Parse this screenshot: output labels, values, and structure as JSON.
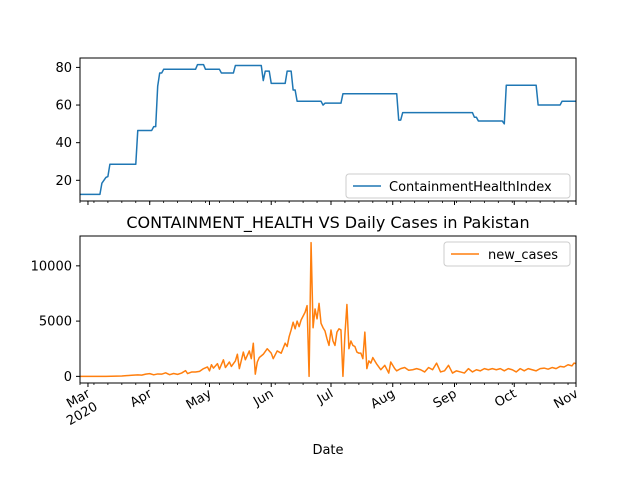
{
  "chart_data": [
    {
      "type": "line",
      "title": "",
      "xlabel": "",
      "ylabel": "",
      "xlim": [
        "2020-02-26",
        "2020-11-01"
      ],
      "ylim": [
        9,
        85
      ],
      "y_ticks": [
        "20",
        "40",
        "60",
        "80"
      ],
      "grid": false,
      "legend_position": "lower-right",
      "series": [
        {
          "name": "ContainmentHealthIndex",
          "color": "#1f77b4",
          "points": [
            [
              "2020-02-26",
              12.5
            ],
            [
              "2020-03-07",
              12.5
            ],
            [
              "2020-03-08",
              18.5
            ],
            [
              "2020-03-10",
              21.5
            ],
            [
              "2020-03-11",
              22
            ],
            [
              "2020-03-12",
              28.5
            ],
            [
              "2020-03-25",
              28.5
            ],
            [
              "2020-03-26",
              46.5
            ],
            [
              "2020-04-02",
              46.5
            ],
            [
              "2020-04-03",
              48.5
            ],
            [
              "2020-04-04",
              48.5
            ],
            [
              "2020-04-05",
              70
            ],
            [
              "2020-04-06",
              77
            ],
            [
              "2020-04-07",
              77
            ],
            [
              "2020-04-08",
              79
            ],
            [
              "2020-04-24",
              79
            ],
            [
              "2020-04-25",
              81.5
            ],
            [
              "2020-04-28",
              81.5
            ],
            [
              "2020-04-29",
              79
            ],
            [
              "2020-05-06",
              79
            ],
            [
              "2020-05-07",
              77
            ],
            [
              "2020-05-13",
              77
            ],
            [
              "2020-05-14",
              81
            ],
            [
              "2020-05-27",
              81
            ],
            [
              "2020-05-28",
              73
            ],
            [
              "2020-05-29",
              78
            ],
            [
              "2020-05-31",
              78
            ],
            [
              "2020-06-01",
              71.5
            ],
            [
              "2020-06-08",
              71.5
            ],
            [
              "2020-06-09",
              78
            ],
            [
              "2020-06-11",
              78
            ],
            [
              "2020-06-12",
              68
            ],
            [
              "2020-06-13",
              68
            ],
            [
              "2020-06-14",
              62
            ],
            [
              "2020-06-26",
              62
            ],
            [
              "2020-06-27",
              60
            ],
            [
              "2020-06-28",
              61
            ],
            [
              "2020-07-06",
              61
            ],
            [
              "2020-07-07",
              66
            ],
            [
              "2020-08-03",
              66
            ],
            [
              "2020-08-04",
              52
            ],
            [
              "2020-08-05",
              52
            ],
            [
              "2020-08-06",
              56
            ],
            [
              "2020-09-10",
              56
            ],
            [
              "2020-09-11",
              53.5
            ],
            [
              "2020-09-12",
              53.5
            ],
            [
              "2020-09-13",
              51.5
            ],
            [
              "2020-09-25",
              51.5
            ],
            [
              "2020-09-26",
              50
            ],
            [
              "2020-09-27",
              70.5
            ],
            [
              "2020-10-12",
              70.5
            ],
            [
              "2020-10-13",
              60
            ],
            [
              "2020-10-24",
              60
            ],
            [
              "2020-10-25",
              62
            ],
            [
              "2020-11-01",
              62
            ]
          ]
        }
      ]
    },
    {
      "type": "line",
      "title": "CONTAINMENT_HEALTH VS Daily Cases in Pakistan",
      "xlabel": "Date",
      "ylabel": "",
      "xlim": [
        "2020-02-26",
        "2020-11-01"
      ],
      "ylim": [
        -600,
        12700
      ],
      "y_ticks": [
        "0",
        "5000",
        "10000"
      ],
      "x_ticks": [
        "Mar\n2020",
        "Apr",
        "May",
        "Jun",
        "Jul",
        "Aug",
        "Sep",
        "Oct",
        "Nov"
      ],
      "grid": false,
      "legend_position": "upper-right",
      "series": [
        {
          "name": "new_cases",
          "color": "#ff7f0e",
          "points": [
            [
              "2020-02-26",
              0
            ],
            [
              "2020-03-10",
              0
            ],
            [
              "2020-03-18",
              30
            ],
            [
              "2020-03-23",
              100
            ],
            [
              "2020-03-26",
              140
            ],
            [
              "2020-03-28",
              110
            ],
            [
              "2020-03-30",
              200
            ],
            [
              "2020-04-01",
              250
            ],
            [
              "2020-04-03",
              140
            ],
            [
              "2020-04-05",
              220
            ],
            [
              "2020-04-07",
              200
            ],
            [
              "2020-04-09",
              320
            ],
            [
              "2020-04-11",
              150
            ],
            [
              "2020-04-13",
              260
            ],
            [
              "2020-04-15",
              180
            ],
            [
              "2020-04-17",
              300
            ],
            [
              "2020-04-19",
              520
            ],
            [
              "2020-04-20",
              250
            ],
            [
              "2020-04-22",
              390
            ],
            [
              "2020-04-24",
              400
            ],
            [
              "2020-04-26",
              450
            ],
            [
              "2020-04-28",
              700
            ],
            [
              "2020-04-30",
              850
            ],
            [
              "2020-05-01",
              500
            ],
            [
              "2020-05-02",
              1050
            ],
            [
              "2020-05-03",
              750
            ],
            [
              "2020-05-05",
              1150
            ],
            [
              "2020-05-06",
              650
            ],
            [
              "2020-05-08",
              1500
            ],
            [
              "2020-05-09",
              800
            ],
            [
              "2020-05-11",
              1300
            ],
            [
              "2020-05-12",
              900
            ],
            [
              "2020-05-14",
              1400
            ],
            [
              "2020-05-15",
              2000
            ],
            [
              "2020-05-16",
              700
            ],
            [
              "2020-05-18",
              2200
            ],
            [
              "2020-05-19",
              1500
            ],
            [
              "2020-05-21",
              2300
            ],
            [
              "2020-05-22",
              1600
            ],
            [
              "2020-05-23",
              3000
            ],
            [
              "2020-05-24",
              200
            ],
            [
              "2020-05-25",
              1300
            ],
            [
              "2020-05-26",
              1700
            ],
            [
              "2020-05-28",
              2000
            ],
            [
              "2020-05-30",
              2500
            ],
            [
              "2020-06-01",
              2100
            ],
            [
              "2020-06-02",
              1600
            ],
            [
              "2020-06-04",
              2300
            ],
            [
              "2020-06-06",
              2100
            ],
            [
              "2020-06-08",
              3000
            ],
            [
              "2020-06-09",
              2700
            ],
            [
              "2020-06-10",
              3600
            ],
            [
              "2020-06-11",
              4200
            ],
            [
              "2020-06-12",
              4900
            ],
            [
              "2020-06-13",
              4300
            ],
            [
              "2020-06-14",
              5000
            ],
            [
              "2020-06-15",
              4500
            ],
            [
              "2020-06-16",
              5100
            ],
            [
              "2020-06-18",
              5800
            ],
            [
              "2020-06-19",
              6400
            ],
            [
              "2020-06-20",
              0
            ],
            [
              "2020-06-21",
              12100
            ],
            [
              "2020-06-22",
              4400
            ],
            [
              "2020-06-23",
              6100
            ],
            [
              "2020-06-24",
              5200
            ],
            [
              "2020-06-25",
              6600
            ],
            [
              "2020-06-26",
              4800
            ],
            [
              "2020-06-27",
              4400
            ],
            [
              "2020-06-28",
              4100
            ],
            [
              "2020-06-29",
              3400
            ],
            [
              "2020-06-30",
              2800
            ],
            [
              "2020-07-01",
              4200
            ],
            [
              "2020-07-02",
              3200
            ],
            [
              "2020-07-03",
              2800
            ],
            [
              "2020-07-04",
              4000
            ],
            [
              "2020-07-05",
              4300
            ],
            [
              "2020-07-06",
              4200
            ],
            [
              "2020-07-07",
              0
            ],
            [
              "2020-07-08",
              3800
            ],
            [
              "2020-07-09",
              6500
            ],
            [
              "2020-07-10",
              2500
            ],
            [
              "2020-07-11",
              3200
            ],
            [
              "2020-07-12",
              2800
            ],
            [
              "2020-07-13",
              2700
            ],
            [
              "2020-07-14",
              2200
            ],
            [
              "2020-07-15",
              2100
            ],
            [
              "2020-07-16",
              2100
            ],
            [
              "2020-07-17",
              1600
            ],
            [
              "2020-07-18",
              4000
            ],
            [
              "2020-07-19",
              700
            ],
            [
              "2020-07-20",
              1400
            ],
            [
              "2020-07-21",
              1200
            ],
            [
              "2020-07-22",
              1700
            ],
            [
              "2020-07-24",
              1100
            ],
            [
              "2020-07-26",
              600
            ],
            [
              "2020-07-28",
              1000
            ],
            [
              "2020-07-30",
              300
            ],
            [
              "2020-07-31",
              1300
            ],
            [
              "2020-08-02",
              700
            ],
            [
              "2020-08-03",
              500
            ],
            [
              "2020-08-05",
              700
            ],
            [
              "2020-08-07",
              800
            ],
            [
              "2020-08-09",
              550
            ],
            [
              "2020-08-11",
              600
            ],
            [
              "2020-08-13",
              700
            ],
            [
              "2020-08-15",
              600
            ],
            [
              "2020-08-17",
              400
            ],
            [
              "2020-08-19",
              800
            ],
            [
              "2020-08-21",
              600
            ],
            [
              "2020-08-23",
              1200
            ],
            [
              "2020-08-25",
              400
            ],
            [
              "2020-08-27",
              500
            ],
            [
              "2020-08-29",
              1000
            ],
            [
              "2020-08-31",
              300
            ],
            [
              "2020-09-02",
              500
            ],
            [
              "2020-09-04",
              400
            ],
            [
              "2020-09-06",
              300
            ],
            [
              "2020-09-08",
              700
            ],
            [
              "2020-09-10",
              400
            ],
            [
              "2020-09-12",
              600
            ],
            [
              "2020-09-14",
              500
            ],
            [
              "2020-09-16",
              700
            ],
            [
              "2020-09-18",
              600
            ],
            [
              "2020-09-20",
              700
            ],
            [
              "2020-09-22",
              600
            ],
            [
              "2020-09-24",
              700
            ],
            [
              "2020-09-26",
              500
            ],
            [
              "2020-09-28",
              700
            ],
            [
              "2020-09-30",
              600
            ],
            [
              "2020-10-02",
              400
            ],
            [
              "2020-10-04",
              700
            ],
            [
              "2020-10-06",
              500
            ],
            [
              "2020-10-08",
              700
            ],
            [
              "2020-10-10",
              600
            ],
            [
              "2020-10-12",
              500
            ],
            [
              "2020-10-14",
              700
            ],
            [
              "2020-10-16",
              750
            ],
            [
              "2020-10-18",
              650
            ],
            [
              "2020-10-20",
              800
            ],
            [
              "2020-10-22",
              700
            ],
            [
              "2020-10-24",
              900
            ],
            [
              "2020-10-26",
              850
            ],
            [
              "2020-10-28",
              1050
            ],
            [
              "2020-10-30",
              950
            ],
            [
              "2020-10-31",
              1200
            ],
            [
              "2020-11-01",
              1150
            ]
          ]
        }
      ]
    }
  ]
}
